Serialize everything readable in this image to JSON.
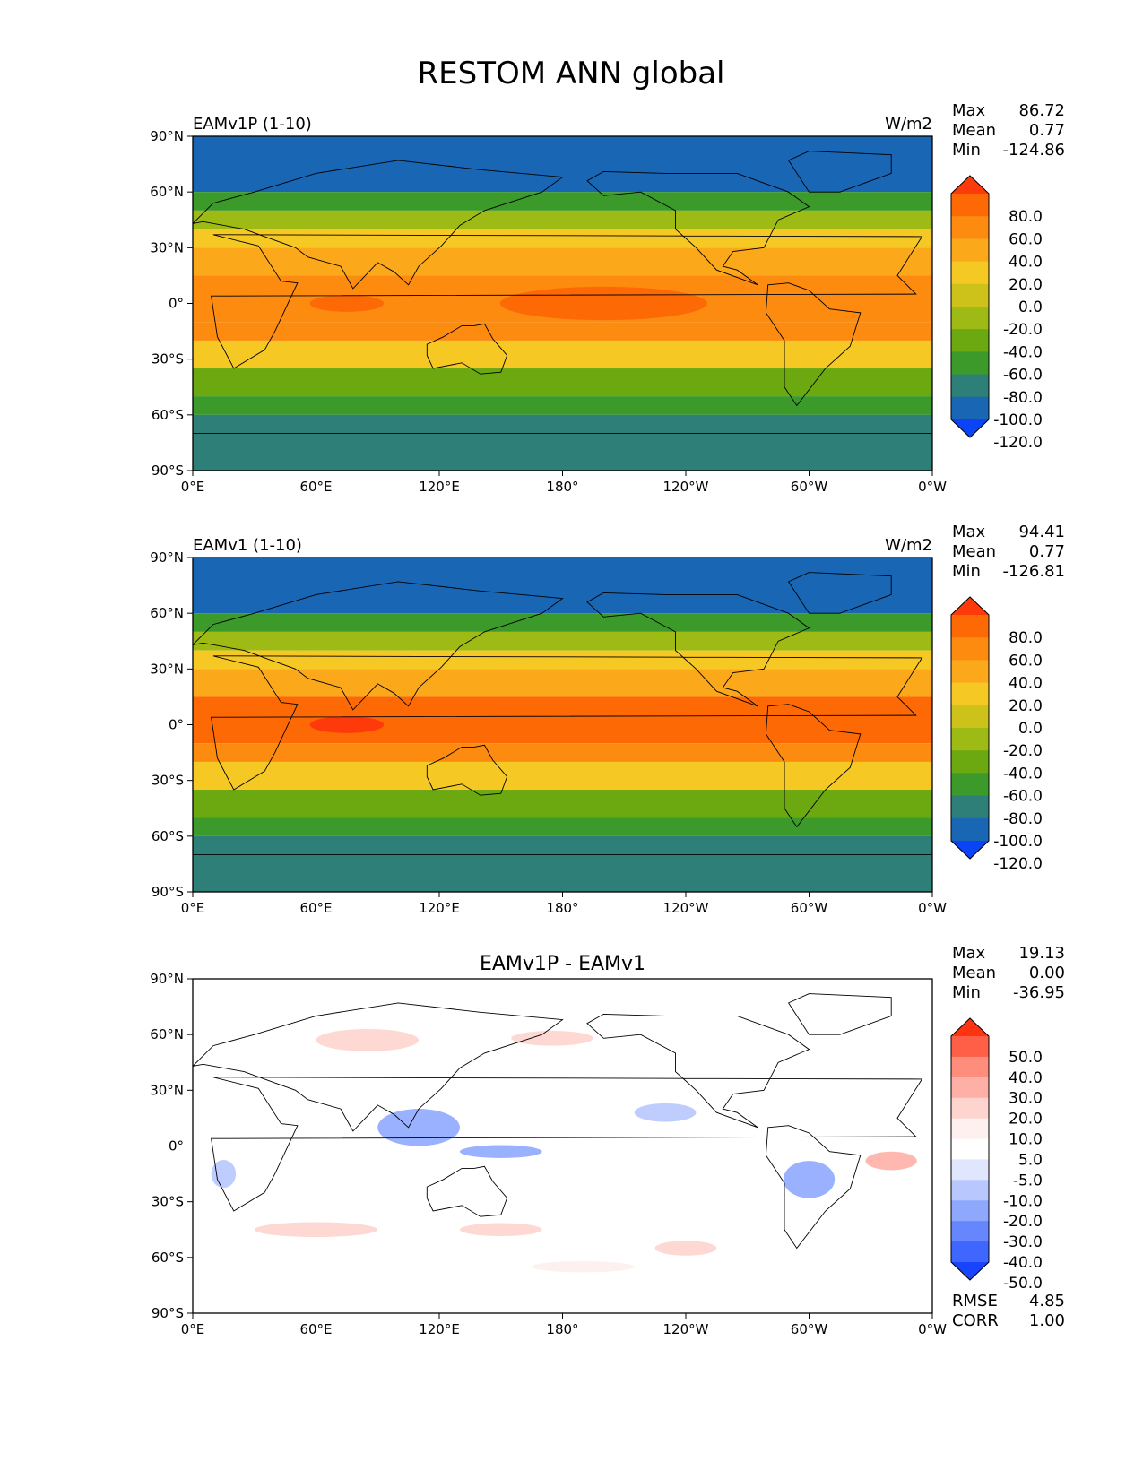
{
  "figure": {
    "title": "RESTOM ANN global"
  },
  "axes": {
    "lat_ticks": [
      "90°N",
      "60°N",
      "30°N",
      "0°",
      "30°S",
      "60°S",
      "90°S"
    ],
    "lon_ticks": [
      "0°E",
      "60°E",
      "120°E",
      "180°",
      "120°W",
      "60°W",
      "0°W"
    ]
  },
  "chart_data": [
    {
      "type": "heatmap",
      "name": "EAMv1P (1-10)",
      "units": "W/m2",
      "stats": [
        {
          "label": "Max",
          "value": "86.72"
        },
        {
          "label": "Mean",
          "value": "0.77"
        },
        {
          "label": "Min",
          "value": "-124.86"
        }
      ],
      "x_range": [
        0,
        360
      ],
      "y_range": [
        -90,
        90
      ],
      "colorbar": {
        "levels": [
          "80.0",
          "60.0",
          "40.0",
          "20.0",
          "0.0",
          "-20.0",
          "-40.0",
          "-60.0",
          "-80.0",
          "-100.0",
          "-120.0"
        ],
        "colors": [
          "#fe3a0b",
          "#fd6a05",
          "#fc8b10",
          "#fba81b",
          "#f6c823",
          "#cdc21a",
          "#9eba15",
          "#6ca80f",
          "#3b9a2a",
          "#2d7f78",
          "#1866b4",
          "#0a44f6"
        ]
      },
      "bands": [
        {
          "lat": [
            60,
            90
          ],
          "level": -120
        },
        {
          "lat": [
            50,
            60
          ],
          "level": -80
        },
        {
          "lat": [
            40,
            50
          ],
          "level": -40
        },
        {
          "lat": [
            30,
            40
          ],
          "level": 0
        },
        {
          "lat": [
            15,
            30
          ],
          "level": 20
        },
        {
          "lat": [
            -10,
            15
          ],
          "level": 40
        },
        {
          "lat": [
            -20,
            -10
          ],
          "level": 40
        },
        {
          "lat": [
            -35,
            -20
          ],
          "level": 0
        },
        {
          "lat": [
            -50,
            -35
          ],
          "level": -60
        },
        {
          "lat": [
            -60,
            -50
          ],
          "level": -80
        },
        {
          "lat": [
            -90,
            -60
          ],
          "level": -100
        }
      ]
    },
    {
      "type": "heatmap",
      "name": "EAMv1 (1-10)",
      "units": "W/m2",
      "stats": [
        {
          "label": "Max",
          "value": "94.41"
        },
        {
          "label": "Mean",
          "value": "0.77"
        },
        {
          "label": "Min",
          "value": "-126.81"
        }
      ],
      "x_range": [
        0,
        360
      ],
      "y_range": [
        -90,
        90
      ],
      "colorbar": {
        "levels": [
          "80.0",
          "60.0",
          "40.0",
          "20.0",
          "0.0",
          "-20.0",
          "-40.0",
          "-60.0",
          "-80.0",
          "-100.0",
          "-120.0"
        ],
        "colors": [
          "#fe3a0b",
          "#fd6a05",
          "#fc8b10",
          "#fba81b",
          "#f6c823",
          "#cdc21a",
          "#9eba15",
          "#6ca80f",
          "#3b9a2a",
          "#2d7f78",
          "#1866b4",
          "#0a44f6"
        ]
      },
      "bands": [
        {
          "lat": [
            60,
            90
          ],
          "level": -120
        },
        {
          "lat": [
            50,
            60
          ],
          "level": -80
        },
        {
          "lat": [
            40,
            50
          ],
          "level": -40
        },
        {
          "lat": [
            30,
            40
          ],
          "level": 0
        },
        {
          "lat": [
            15,
            30
          ],
          "level": 20
        },
        {
          "lat": [
            -10,
            15
          ],
          "level": 60
        },
        {
          "lat": [
            -20,
            -10
          ],
          "level": 40
        },
        {
          "lat": [
            -35,
            -20
          ],
          "level": 0
        },
        {
          "lat": [
            -50,
            -35
          ],
          "level": -60
        },
        {
          "lat": [
            -60,
            -50
          ],
          "level": -80
        },
        {
          "lat": [
            -90,
            -60
          ],
          "level": -100
        }
      ]
    },
    {
      "type": "heatmap",
      "name": "EAMv1P - EAMv1",
      "units": "",
      "stats": [
        {
          "label": "Max",
          "value": "19.13"
        },
        {
          "label": "Mean",
          "value": "0.00"
        },
        {
          "label": "Min",
          "value": "-36.95"
        }
      ],
      "extra_stats": [
        {
          "label": "RMSE",
          "value": "4.85"
        },
        {
          "label": "CORR",
          "value": "1.00"
        }
      ],
      "x_range": [
        0,
        360
      ],
      "y_range": [
        -90,
        90
      ],
      "colorbar": {
        "levels": [
          "50.0",
          "40.0",
          "30.0",
          "20.0",
          "10.0",
          "5.0",
          "-5.0",
          "-10.0",
          "-20.0",
          "-30.0",
          "-40.0",
          "-50.0"
        ],
        "colors": [
          "#fe3311",
          "#fe5f46",
          "#fe8e7b",
          "#feb0a6",
          "#fed4ce",
          "#fdf0ee",
          "#ffffff",
          "#dfe6fe",
          "#b8c8fe",
          "#8ea8fe",
          "#6686fe",
          "#3f66fe",
          "#1744fe"
        ]
      }
    }
  ]
}
